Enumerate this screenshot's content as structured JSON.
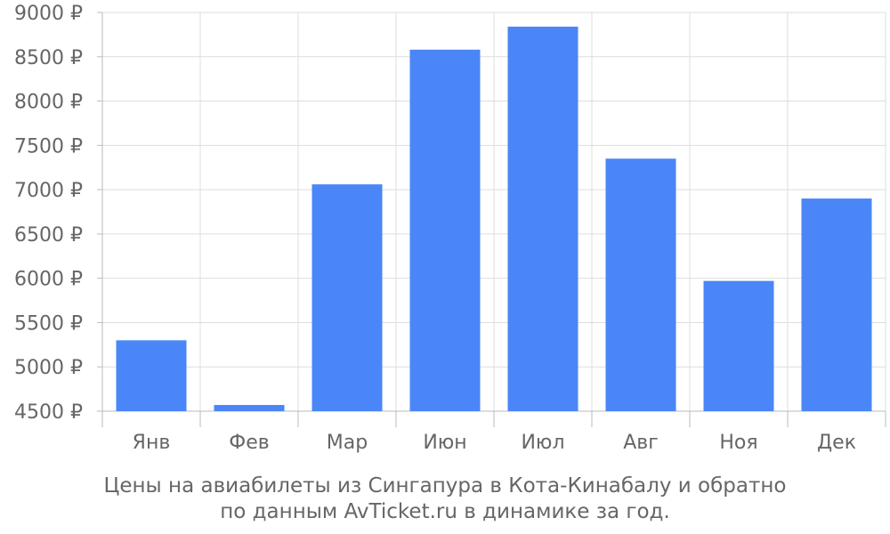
{
  "chart_data": {
    "type": "bar",
    "categories": [
      "Янв",
      "Фев",
      "Мар",
      "Июн",
      "Июл",
      "Авг",
      "Ноя",
      "Дек"
    ],
    "values": [
      5300,
      4570,
      7060,
      8580,
      8840,
      7350,
      5970,
      6900
    ],
    "ylim": [
      4500,
      9000
    ],
    "yticks": [
      4500,
      5000,
      5500,
      6000,
      6500,
      7000,
      7500,
      8000,
      8500,
      9000
    ],
    "ytick_labels": [
      "4500 ₽",
      "5000 ₽",
      "5500 ₽",
      "6000 ₽",
      "6500 ₽",
      "7000 ₽",
      "7500 ₽",
      "8000 ₽",
      "8500 ₽",
      "9000 ₽"
    ],
    "grid": true,
    "bar_color": "#4a86f7",
    "caption_lines": [
      "Цены на авиабилеты из Сингапура в Кота-Кинабалу и обратно",
      "по данным AvTicket.ru в динамике за год."
    ]
  }
}
